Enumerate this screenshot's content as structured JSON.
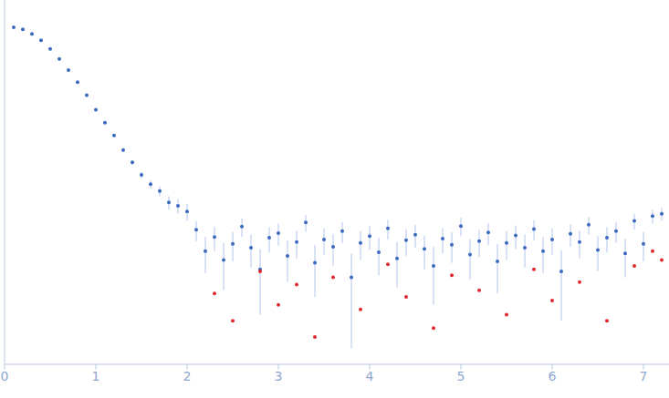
{
  "chart_data": {
    "type": "scatter",
    "log": "y",
    "tick_labels": "x",
    "grid": false,
    "marker": "circle",
    "xlim": [
      0,
      7.28
    ],
    "xticks": [
      0,
      1,
      2,
      3,
      4,
      5,
      6,
      7
    ],
    "ylim": [
      0.0002,
      2
    ],
    "yticks": [
      0.001,
      0.01,
      0.1,
      1
    ],
    "series": [
      {
        "color": "#3a68c0",
        "x": [
          0.1,
          0.2,
          0.3,
          0.4,
          0.5,
          0.6,
          0.7,
          0.8,
          0.9,
          1.0,
          1.1,
          1.2,
          1.3,
          1.4,
          1.5,
          1.6,
          1.7,
          1.8,
          1.9,
          2.0,
          2.1,
          2.2,
          2.3,
          2.4,
          2.5,
          2.6,
          2.7,
          2.8,
          2.9,
          3.0,
          3.1,
          3.2,
          3.3,
          3.4,
          3.5,
          3.6,
          3.7,
          3.8,
          3.9,
          4.0,
          4.1,
          4.2,
          4.3,
          4.4,
          4.5,
          4.6,
          4.7,
          4.8,
          4.9,
          5.0,
          5.1,
          5.2,
          5.3,
          5.4,
          5.5,
          5.6,
          5.7,
          5.8,
          5.9,
          6.0,
          6.1,
          6.2,
          6.3,
          6.4,
          6.5,
          6.6,
          6.7,
          6.8,
          6.9,
          7.0,
          7.1,
          7.2
        ],
        "values": [
          1.0,
          0.95,
          0.85,
          0.72,
          0.58,
          0.45,
          0.34,
          0.25,
          0.18,
          0.125,
          0.09,
          0.065,
          0.045,
          0.033,
          0.024,
          0.019,
          0.016,
          0.012,
          0.011,
          0.0095,
          0.006,
          0.0035,
          0.005,
          0.0028,
          0.0042,
          0.0065,
          0.0038,
          0.0022,
          0.0049,
          0.0055,
          0.0031,
          0.0044,
          0.0072,
          0.0026,
          0.0047,
          0.0039,
          0.0058,
          0.0018,
          0.0043,
          0.0051,
          0.0034,
          0.0062,
          0.0029,
          0.0046,
          0.0053,
          0.0037,
          0.0024,
          0.0048,
          0.0041,
          0.0066,
          0.0032,
          0.0045,
          0.0056,
          0.0027,
          0.0043,
          0.0052,
          0.0038,
          0.0061,
          0.0035,
          0.0047,
          0.0021,
          0.0054,
          0.0044,
          0.0068,
          0.0036,
          0.0049,
          0.0058,
          0.0033,
          0.0075,
          0.0042,
          0.0085,
          0.009
        ],
        "errors": [
          0.01,
          0.01,
          0.01,
          0.008,
          0.007,
          0.006,
          0.005,
          0.004,
          0.003,
          0.003,
          0.002,
          0.002,
          0.002,
          0.002,
          0.002,
          0.002,
          0.002,
          0.002,
          0.002,
          0.002,
          0.0015,
          0.0015,
          0.0015,
          0.0015,
          0.0015,
          0.0015,
          0.0015,
          0.0015,
          0.0015,
          0.0015,
          0.0015,
          0.0015,
          0.0015,
          0.0015,
          0.0015,
          0.0015,
          0.0015,
          0.0015,
          0.0015,
          0.0015,
          0.0015,
          0.0015,
          0.0015,
          0.0015,
          0.0015,
          0.0015,
          0.0015,
          0.0015,
          0.0015,
          0.0015,
          0.0015,
          0.0015,
          0.0015,
          0.0015,
          0.0015,
          0.0015,
          0.0015,
          0.0015,
          0.0015,
          0.0015,
          0.0015,
          0.0015,
          0.0015,
          0.0015,
          0.0015,
          0.0015,
          0.0015,
          0.0015,
          0.0015,
          0.0015,
          0.0015,
          0.0015
        ]
      },
      {
        "color": "#e0282e",
        "x": [
          2.3,
          2.5,
          2.8,
          3.0,
          3.2,
          3.4,
          3.6,
          3.9,
          4.2,
          4.4,
          4.7,
          4.9,
          5.2,
          5.5,
          5.8,
          6.0,
          6.3,
          6.6,
          6.9,
          7.1,
          7.2
        ],
        "values": [
          0.0012,
          0.0006,
          0.0021,
          0.0009,
          0.0015,
          0.0004,
          0.0018,
          0.0008,
          0.0025,
          0.0011,
          0.0005,
          0.0019,
          0.0013,
          0.0007,
          0.0022,
          0.001,
          0.0016,
          0.0006,
          0.0024,
          0.0035,
          0.0028
        ]
      }
    ]
  }
}
